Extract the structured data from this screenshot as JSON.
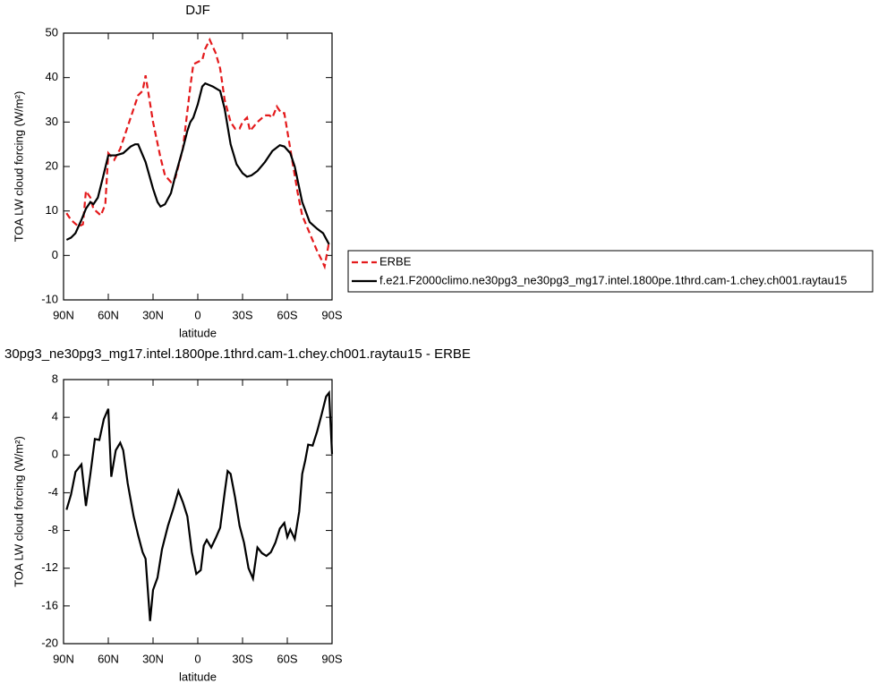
{
  "chart_data": [
    {
      "type": "line",
      "title": "DJF",
      "xlabel": "latitude",
      "ylabel": "TOA LW cloud forcing (W/m²)",
      "xlim": [
        90,
        -90
      ],
      "ylim": [
        -10,
        50
      ],
      "xticks": [
        {
          "value": 90,
          "label": "90N"
        },
        {
          "value": 60,
          "label": "60N"
        },
        {
          "value": 30,
          "label": "30N"
        },
        0,
        {
          "value": -30,
          "label": "30S"
        },
        {
          "value": -60,
          "label": "60S"
        },
        {
          "value": -90,
          "label": "90S"
        }
      ],
      "yticks": [
        -10,
        0,
        10,
        20,
        30,
        40,
        50
      ],
      "legend": "outside right",
      "series": [
        {
          "name": "ERBE",
          "color": "#e41a1c",
          "line_style": "dashed",
          "x": [
            88,
            85,
            80,
            77,
            75,
            72,
            70,
            65,
            62,
            60,
            56,
            52,
            48,
            43,
            40,
            37,
            35,
            30,
            25,
            22,
            18,
            15,
            10,
            5,
            3,
            0,
            -3,
            -5,
            -8,
            -12,
            -15,
            -18,
            -22,
            -25,
            -28,
            -30,
            -33,
            -35,
            -40,
            -45,
            -48,
            -50,
            -53,
            -56,
            -58,
            -60,
            -63,
            -67,
            -70,
            -75,
            -80,
            -83,
            -85,
            -88
          ],
          "values": [
            9.5,
            8,
            6.5,
            7,
            14.5,
            13,
            10.5,
            9,
            11.5,
            23,
            21.5,
            24,
            28,
            33,
            36,
            37,
            40.5,
            30,
            22,
            18,
            16.5,
            17.5,
            24,
            38,
            43,
            43.5,
            44,
            46.5,
            48.5,
            45.5,
            42,
            35,
            30,
            28.5,
            28.5,
            30,
            31,
            28,
            30,
            31.5,
            31.5,
            31,
            33.5,
            32,
            32,
            28,
            22,
            14,
            9,
            5,
            1,
            -1,
            -2.5,
            3
          ]
        },
        {
          "name": "f.e21.F2000climo.ne30pg3_ne30pg3_mg17.intel.1800pe.1thrd.cam-1.chey.ch001.raytau15",
          "color": "#000000",
          "line_style": "solid",
          "x": [
            88,
            85,
            82,
            78,
            75,
            72,
            70,
            67,
            64,
            60,
            55,
            50,
            45,
            42,
            40,
            35,
            30,
            27,
            25,
            22,
            18,
            15,
            10,
            7,
            5,
            3,
            0,
            -3,
            -5,
            -10,
            -15,
            -18,
            -22,
            -26,
            -30,
            -33,
            -36,
            -40,
            -45,
            -50,
            -55,
            -58,
            -62,
            -65,
            -70,
            -75,
            -80,
            -84,
            -88
          ],
          "values": [
            3.5,
            4,
            5,
            8,
            10.5,
            12,
            11.5,
            13,
            17,
            22.5,
            22.5,
            23,
            24.5,
            25,
            25,
            21,
            15,
            12,
            11,
            11.5,
            14,
            18,
            24,
            28,
            30,
            31,
            34,
            38,
            38.7,
            38,
            37,
            33,
            25,
            20.5,
            18.5,
            17.7,
            18,
            19,
            21,
            23.5,
            24.8,
            24.5,
            23,
            20,
            12,
            7.5,
            6,
            5,
            2.5
          ]
        }
      ]
    },
    {
      "type": "line",
      "title": "30pg3_ne30pg3_mg17.intel.1800pe.1thrd.cam-1.chey.ch001.raytau15 - ERBE",
      "xlabel": "latitude",
      "ylabel": "TOA LW cloud forcing (W/m²)",
      "xlim": [
        90,
        -90
      ],
      "ylim": [
        -20,
        8
      ],
      "xticks": [
        {
          "value": 90,
          "label": "90N"
        },
        {
          "value": 60,
          "label": "60N"
        },
        {
          "value": 30,
          "label": "30N"
        },
        0,
        {
          "value": -30,
          "label": "30S"
        },
        {
          "value": -60,
          "label": "60S"
        },
        {
          "value": -90,
          "label": "90S"
        }
      ],
      "yticks": [
        -20,
        -16,
        -12,
        -8,
        -4,
        0,
        4,
        8
      ],
      "series": [
        {
          "color": "#000000",
          "line_style": "solid",
          "x": [
            88,
            85,
            82,
            78,
            75,
            72,
            69,
            66,
            63,
            60,
            58,
            55,
            52,
            50,
            47,
            43,
            40,
            37,
            35,
            32,
            30,
            27,
            24,
            20,
            16,
            13,
            10,
            7,
            4,
            1,
            -2,
            -4,
            -6,
            -9,
            -12,
            -15,
            -18,
            -20,
            -22,
            -25,
            -28,
            -31,
            -34,
            -37,
            -40,
            -43,
            -46,
            -49,
            -52,
            -55,
            -58,
            -60,
            -62,
            -65,
            -68,
            -70,
            -72,
            -74,
            -77,
            -80,
            -83,
            -86,
            -88,
            -90
          ],
          "values": [
            -5.8,
            -4.2,
            -1.8,
            -1,
            -5.4,
            -2,
            1.7,
            1.6,
            3.8,
            4.9,
            -2.3,
            0.5,
            1.3,
            0.5,
            -3,
            -6.5,
            -8.5,
            -10.3,
            -11,
            -17.6,
            -14.3,
            -13,
            -10,
            -7.5,
            -5.5,
            -3.8,
            -5,
            -6.5,
            -10.3,
            -12.6,
            -12.2,
            -9.6,
            -9,
            -9.8,
            -8.8,
            -7.7,
            -4,
            -1.7,
            -2,
            -4.5,
            -7.5,
            -9.3,
            -12,
            -13.1,
            -9.8,
            -10.4,
            -10.7,
            -10.3,
            -9.3,
            -7.8,
            -7.2,
            -8.7,
            -7.9,
            -8.9,
            -6,
            -2,
            -0.6,
            1.1,
            1,
            2.5,
            4.3,
            6.2,
            6.6,
            0.1
          ]
        }
      ]
    }
  ]
}
